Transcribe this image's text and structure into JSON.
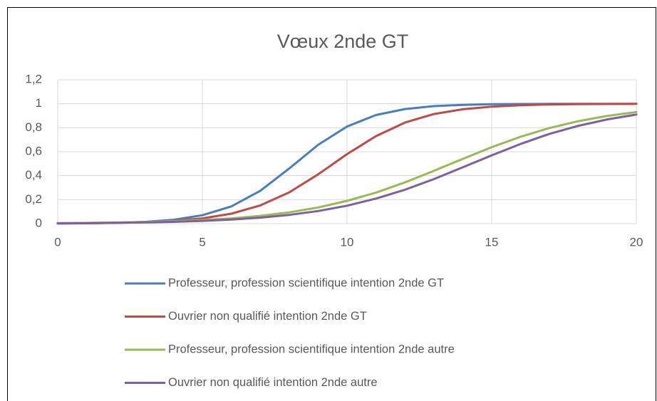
{
  "chart_data": {
    "type": "line",
    "title": "Vœux 2nde GT",
    "x": [
      0,
      1,
      2,
      3,
      4,
      5,
      6,
      7,
      8,
      9,
      10,
      11,
      12,
      13,
      14,
      15,
      16,
      17,
      18,
      19,
      20
    ],
    "series": [
      {
        "name": "Professeur, profession scientifique intention 2nde GT",
        "color": "#4a7ebb",
        "values": [
          0.001,
          0.003,
          0.007,
          0.015,
          0.032,
          0.07,
          0.144,
          0.274,
          0.46,
          0.657,
          0.81,
          0.906,
          0.956,
          0.98,
          0.991,
          0.996,
          0.998,
          0.999,
          1,
          1,
          1
        ]
      },
      {
        "name": "Ouvrier non qualifié intention 2nde GT",
        "color": "#be4b48",
        "values": [
          0.002,
          0.003,
          0.006,
          0.012,
          0.023,
          0.044,
          0.083,
          0.152,
          0.261,
          0.411,
          0.58,
          0.73,
          0.843,
          0.914,
          0.954,
          0.976,
          0.988,
          0.994,
          0.997,
          0.998,
          0.999
        ]
      },
      {
        "name": "Professeur, profession scientifique intention 2nde autre",
        "color": "#98b954",
        "values": [
          0.004,
          0.006,
          0.009,
          0.014,
          0.02,
          0.03,
          0.044,
          0.065,
          0.094,
          0.135,
          0.19,
          0.259,
          0.344,
          0.44,
          0.54,
          0.638,
          0.725,
          0.798,
          0.855,
          0.899,
          0.93
        ]
      },
      {
        "name": "Ouvrier non qualifié intention 2nde autre",
        "color": "#7d60a0",
        "values": [
          0.003,
          0.005,
          0.007,
          0.01,
          0.015,
          0.023,
          0.034,
          0.05,
          0.073,
          0.105,
          0.15,
          0.209,
          0.283,
          0.371,
          0.47,
          0.57,
          0.665,
          0.749,
          0.816,
          0.87,
          0.91
        ]
      }
    ],
    "xlim": [
      0,
      20
    ],
    "xticks": [
      0,
      5,
      10,
      15,
      20
    ],
    "ylim": [
      0,
      1.2
    ],
    "yticks": [
      0,
      {
        "value": 0.2,
        "label": "0,2"
      },
      {
        "value": 0.4,
        "label": "0,4"
      },
      {
        "value": 0.6,
        "label": "0,6"
      },
      {
        "value": 0.8,
        "label": "0,8"
      },
      1,
      {
        "value": 1.2,
        "label": "1,2"
      }
    ],
    "grid": true,
    "legend": "bottom"
  }
}
